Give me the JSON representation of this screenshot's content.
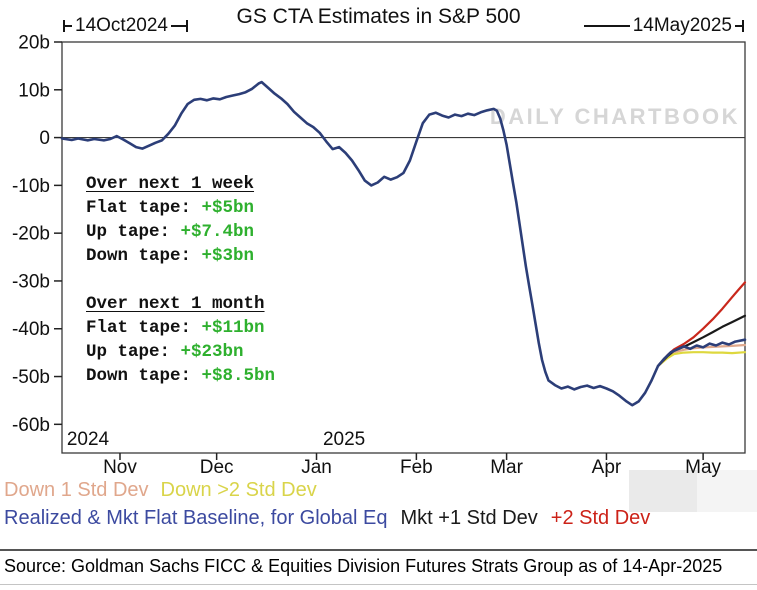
{
  "header": {
    "title": "GS CTA Estimates in S&P 500",
    "start_date": "14Oct2024",
    "end_date": "14May2025"
  },
  "watermark": "DAILY CHARTBOOK",
  "annotations": {
    "value_color": "#2eb02e",
    "week": {
      "title": "Over next 1 week",
      "rows": [
        {
          "label": "Flat tape: ",
          "value": "+$5bn"
        },
        {
          "label": "Up tape: ",
          "value": "+$7.4bn"
        },
        {
          "label": "Down tape: ",
          "value": "+$3bn"
        }
      ]
    },
    "month": {
      "title": "Over next 1 month",
      "rows": [
        {
          "label": "Flat tape: ",
          "value": "+$11bn"
        },
        {
          "label": "Up tape: ",
          "value": "+$23bn"
        },
        {
          "label": "Down tape: ",
          "value": "+$8.5bn"
        }
      ]
    }
  },
  "legend": {
    "row1": [
      {
        "label": "Down 1 Std Dev",
        "color": "#e0a78c"
      },
      {
        "label": "Down >2 Std Dev",
        "color": "#d9d44a"
      }
    ],
    "row2": [
      {
        "label": "Realized & Mkt Flat Baseline, for Global Eq",
        "color": "#3c4aa0"
      },
      {
        "label": "Mkt +1 Std Dev",
        "color": "#1a1a1a"
      },
      {
        "label": "+2 Std Dev",
        "color": "#cc2218"
      }
    ]
  },
  "source": "Source: Goldman Sachs FICC & Equities Division Futures Strats Group as of 14-Apr-2025",
  "chart_data": {
    "type": "line",
    "title": "GS CTA Estimates in S&P 500",
    "x_unit": "days since 14Oct2024",
    "xlim": [
      0,
      212
    ],
    "ylim": [
      -66,
      20
    ],
    "grid": false,
    "yticks": [
      {
        "label": "20b",
        "value": 20
      },
      {
        "label": "10b",
        "value": 10
      },
      {
        "label": "0",
        "value": 0
      },
      {
        "label": "-10b",
        "value": -10
      },
      {
        "label": "-20b",
        "value": -20
      },
      {
        "label": "-30b",
        "value": -30
      },
      {
        "label": "-40b",
        "value": -40
      },
      {
        "label": "-50b",
        "value": -50
      },
      {
        "label": "-60b",
        "value": -60
      }
    ],
    "xticks": [
      {
        "label": "Nov",
        "day": 18
      },
      {
        "label": "Dec",
        "day": 48
      },
      {
        "label": "Jan",
        "day": 79
      },
      {
        "label": "Feb",
        "day": 110
      },
      {
        "label": "Mar",
        "day": 138
      },
      {
        "label": "Apr",
        "day": 169
      },
      {
        "label": "May",
        "day": 199
      }
    ],
    "year_labels": [
      {
        "label": "2024",
        "day": 1.5
      },
      {
        "label": "2025",
        "day": 81
      }
    ],
    "series": [
      {
        "id": "down-1-std-dev",
        "name": "Down 1 Std Dev",
        "color": "#dfa88d",
        "width": 2.2,
        "points": [
          [
            185,
            -47.8
          ],
          [
            188,
            -45.9
          ],
          [
            190,
            -44.9
          ],
          [
            193,
            -44.4
          ],
          [
            196,
            -44.1
          ],
          [
            199,
            -43.9
          ],
          [
            202,
            -43.8
          ],
          [
            205,
            -43.7
          ],
          [
            208,
            -43.6
          ],
          [
            212,
            -43.4
          ]
        ]
      },
      {
        "id": "down-gt2-std-dev",
        "name": "Down >2 Std Dev",
        "color": "#ded83e",
        "width": 2.2,
        "points": [
          [
            185,
            -47.8
          ],
          [
            188,
            -46.1
          ],
          [
            190,
            -45.3
          ],
          [
            193,
            -45.0
          ],
          [
            196,
            -44.9
          ],
          [
            199,
            -44.9
          ],
          [
            202,
            -45.0
          ],
          [
            205,
            -45.0
          ],
          [
            208,
            -45.1
          ],
          [
            212,
            -44.9
          ]
        ]
      },
      {
        "id": "mkt-plus-1-std-dev",
        "name": "Mkt +1 Std Dev",
        "color": "#1a1a1a",
        "width": 2.2,
        "points": [
          [
            185,
            -47.8
          ],
          [
            188,
            -45.7
          ],
          [
            190,
            -44.6
          ],
          [
            193,
            -43.8
          ],
          [
            196,
            -42.8
          ],
          [
            199,
            -41.8
          ],
          [
            202,
            -40.7
          ],
          [
            205,
            -39.6
          ],
          [
            208,
            -38.6
          ],
          [
            212,
            -37.3
          ]
        ]
      },
      {
        "id": "plus-2-std-dev",
        "name": "+2 Std Dev",
        "color": "#c9281c",
        "width": 2.2,
        "points": [
          [
            185,
            -47.8
          ],
          [
            188,
            -45.5
          ],
          [
            190,
            -44.3
          ],
          [
            193,
            -43.2
          ],
          [
            196,
            -41.8
          ],
          [
            199,
            -40.0
          ],
          [
            202,
            -38.0
          ],
          [
            205,
            -35.8
          ],
          [
            208,
            -33.4
          ],
          [
            210,
            -31.8
          ],
          [
            212,
            -30.3
          ]
        ]
      },
      {
        "id": "realized-flat-baseline",
        "name": "Realized & Mkt Flat Baseline, for Global Eq",
        "color": "#2c3e78",
        "width": 2.6,
        "points": [
          [
            0,
            -0.2
          ],
          [
            3,
            -0.5
          ],
          [
            5,
            -0.2
          ],
          [
            8,
            -0.6
          ],
          [
            10,
            -0.3
          ],
          [
            13,
            -0.6
          ],
          [
            15,
            -0.3
          ],
          [
            17,
            0.3
          ],
          [
            19,
            -0.4
          ],
          [
            21,
            -1.2
          ],
          [
            23,
            -2.0
          ],
          [
            25,
            -2.3
          ],
          [
            27,
            -1.7
          ],
          [
            29,
            -1.1
          ],
          [
            31,
            -0.6
          ],
          [
            33,
            0.8
          ],
          [
            35,
            2.5
          ],
          [
            37,
            5.0
          ],
          [
            39,
            7.0
          ],
          [
            41,
            7.9
          ],
          [
            43,
            8.1
          ],
          [
            45,
            7.8
          ],
          [
            47,
            8.2
          ],
          [
            49,
            8.0
          ],
          [
            51,
            8.5
          ],
          [
            53,
            8.8
          ],
          [
            55,
            9.1
          ],
          [
            57,
            9.5
          ],
          [
            59,
            10.2
          ],
          [
            61,
            11.3
          ],
          [
            62,
            11.6
          ],
          [
            64,
            10.4
          ],
          [
            66,
            9.2
          ],
          [
            68,
            8.2
          ],
          [
            70,
            7.0
          ],
          [
            72,
            5.4
          ],
          [
            74,
            4.2
          ],
          [
            76,
            3.0
          ],
          [
            78,
            2.2
          ],
          [
            80,
            1.0
          ],
          [
            82,
            -0.8
          ],
          [
            84,
            -2.4
          ],
          [
            86,
            -2.0
          ],
          [
            88,
            -3.2
          ],
          [
            90,
            -4.8
          ],
          [
            92,
            -6.8
          ],
          [
            94,
            -9.0
          ],
          [
            96,
            -10.0
          ],
          [
            98,
            -9.4
          ],
          [
            100,
            -8.2
          ],
          [
            102,
            -8.8
          ],
          [
            104,
            -8.3
          ],
          [
            106,
            -7.4
          ],
          [
            108,
            -4.8
          ],
          [
            110,
            -0.8
          ],
          [
            112,
            3.0
          ],
          [
            114,
            4.8
          ],
          [
            116,
            5.2
          ],
          [
            118,
            4.6
          ],
          [
            120,
            4.2
          ],
          [
            122,
            4.8
          ],
          [
            124,
            4.5
          ],
          [
            126,
            5.0
          ],
          [
            128,
            4.7
          ],
          [
            130,
            5.3
          ],
          [
            132,
            5.7
          ],
          [
            134,
            6.0
          ],
          [
            135,
            5.6
          ],
          [
            136,
            4.0
          ],
          [
            137,
            1.5
          ],
          [
            138,
            -1.5
          ],
          [
            139,
            -5.5
          ],
          [
            140,
            -9.5
          ],
          [
            141,
            -13.5
          ],
          [
            142,
            -18.0
          ],
          [
            143,
            -22.5
          ],
          [
            144,
            -27.0
          ],
          [
            145,
            -31.0
          ],
          [
            146,
            -35.0
          ],
          [
            147,
            -39.0
          ],
          [
            148,
            -43.0
          ],
          [
            149,
            -46.5
          ],
          [
            150,
            -49.0
          ],
          [
            151,
            -50.8
          ],
          [
            153,
            -51.8
          ],
          [
            155,
            -52.5
          ],
          [
            157,
            -52.1
          ],
          [
            159,
            -52.7
          ],
          [
            161,
            -52.2
          ],
          [
            163,
            -51.9
          ],
          [
            165,
            -52.4
          ],
          [
            167,
            -52.0
          ],
          [
            169,
            -52.5
          ],
          [
            171,
            -53.1
          ],
          [
            173,
            -54.0
          ],
          [
            175,
            -55.1
          ],
          [
            177,
            -56.0
          ],
          [
            179,
            -55.2
          ],
          [
            181,
            -53.4
          ],
          [
            183,
            -50.8
          ],
          [
            185,
            -47.8
          ],
          [
            187,
            -46.2
          ],
          [
            189,
            -44.9
          ],
          [
            191,
            -44.3
          ],
          [
            193,
            -43.7
          ],
          [
            195,
            -44.2
          ],
          [
            197,
            -43.5
          ],
          [
            199,
            -43.9
          ],
          [
            201,
            -43.1
          ],
          [
            203,
            -43.5
          ],
          [
            205,
            -42.9
          ],
          [
            207,
            -43.3
          ],
          [
            209,
            -42.7
          ],
          [
            212,
            -42.3
          ]
        ]
      }
    ]
  }
}
